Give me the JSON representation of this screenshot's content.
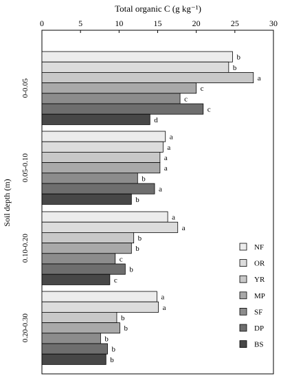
{
  "chart_data": {
    "type": "bar",
    "orientation": "horizontal",
    "title": "",
    "xlabel": "Total organic C (g kg⁻¹)",
    "ylabel": "Soil depth (m)",
    "xlim": [
      0,
      30
    ],
    "x_ticks": [
      "0",
      "5",
      "10",
      "15",
      "20",
      "25",
      "30"
    ],
    "grid": false,
    "legend_position": "bottom-right",
    "categories": [
      "0-0.05",
      "0.05-0.10",
      "0.10-0.20",
      "0.20-0.30"
    ],
    "series": [
      {
        "name": "NF",
        "color": "#ececec",
        "values": [
          24.7,
          16.0,
          16.3,
          14.9
        ],
        "labels": [
          "b",
          "a",
          "a",
          "a"
        ]
      },
      {
        "name": "OR",
        "color": "#dcdcdc",
        "values": [
          24.2,
          15.7,
          17.6,
          15.1
        ],
        "labels": [
          "b",
          "a",
          "a",
          "a"
        ]
      },
      {
        "name": "YR",
        "color": "#c8c8c8",
        "values": [
          27.4,
          15.3,
          11.9,
          9.7
        ],
        "labels": [
          "a",
          "a",
          "b",
          "b"
        ]
      },
      {
        "name": "MP",
        "color": "#a9a9a9",
        "values": [
          20.0,
          15.3,
          11.6,
          10.1
        ],
        "labels": [
          "c",
          "a",
          "b",
          "b"
        ]
      },
      {
        "name": "SF",
        "color": "#8c8c8c",
        "values": [
          17.9,
          12.4,
          9.5,
          7.6
        ],
        "labels": [
          "c",
          "b",
          "c",
          "b"
        ]
      },
      {
        "name": "DP",
        "color": "#6e6e6e",
        "values": [
          20.9,
          14.6,
          10.8,
          8.5
        ],
        "labels": [
          "c",
          "a",
          "b",
          "b"
        ]
      },
      {
        "name": "BS",
        "color": "#474747",
        "values": [
          14.0,
          11.6,
          8.8,
          8.3
        ],
        "labels": [
          "d",
          "b",
          "c",
          "b"
        ]
      }
    ]
  }
}
